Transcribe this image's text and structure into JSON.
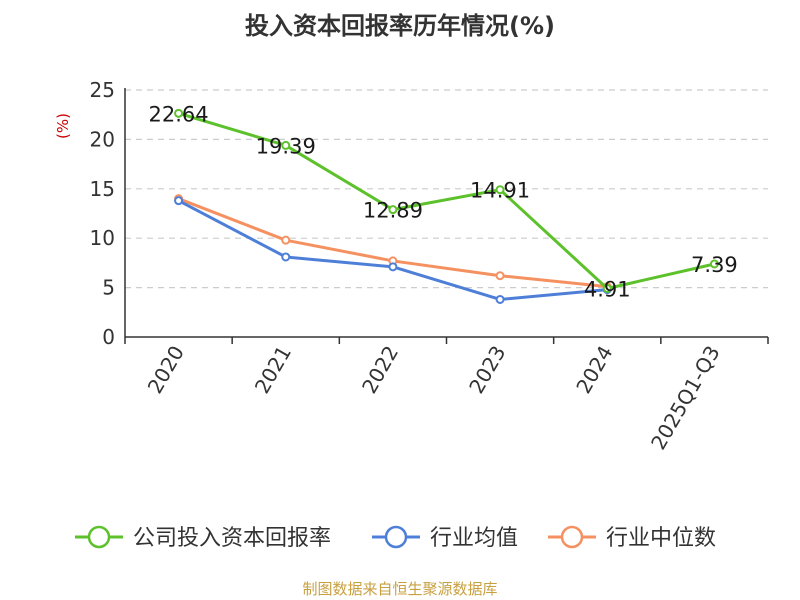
{
  "title": "投入资本回报率历年情况(%)",
  "source": "制图数据来自恒生聚源数据库",
  "chart_data": {
    "type": "line",
    "title": "投入资本回报率历年情况(%)",
    "ylabel": "(%)",
    "xlabel": "",
    "categories": [
      "2020",
      "2021",
      "2022",
      "2023",
      "2024",
      "2025Q1-Q3"
    ],
    "ylim": [
      0,
      25
    ],
    "yticks": [
      0,
      5,
      10,
      15,
      20,
      25
    ],
    "grid": true,
    "legend_position": "bottom",
    "series": [
      {
        "name": "公司投入资本回报率",
        "color": "#5cc12a",
        "values": [
          22.64,
          19.39,
          12.89,
          14.91,
          4.91,
          7.39
        ],
        "labels": [
          "22.64",
          "19.39",
          "12.89",
          "14.91",
          "4.91",
          "7.39"
        ]
      },
      {
        "name": "行业均值",
        "color": "#4e7fd8",
        "values": [
          13.8,
          8.1,
          7.1,
          3.8,
          4.8,
          null
        ]
      },
      {
        "name": "行业中位数",
        "color": "#f59160",
        "values": [
          14.0,
          9.8,
          7.7,
          6.2,
          5.1,
          null
        ]
      }
    ]
  }
}
